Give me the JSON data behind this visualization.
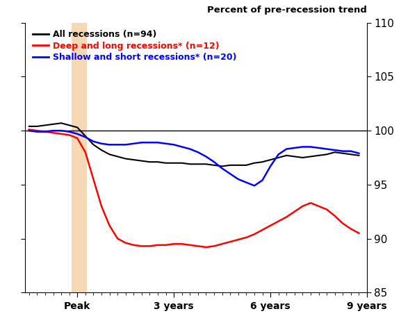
{
  "title": "Percent of pre-recession trend",
  "ylabel_ticks": [
    85,
    90,
    95,
    100,
    105,
    110
  ],
  "ylim": [
    85,
    110
  ],
  "peak_shade_color": "#f5d9b5",
  "hline_y": 100,
  "legend": [
    {
      "label": "All recessions (n=94)",
      "color": "black"
    },
    {
      "label": "Deep and long recessions* (n=12)",
      "color": "red"
    },
    {
      "label": "Shallow and short recessions* (n=20)",
      "color": "blue"
    }
  ],
  "all_recessions": [
    100.4,
    100.4,
    100.5,
    100.6,
    100.7,
    100.5,
    100.3,
    99.5,
    98.7,
    98.2,
    97.8,
    97.6,
    97.4,
    97.3,
    97.2,
    97.1,
    97.1,
    97.0,
    97.0,
    97.0,
    96.9,
    96.9,
    96.9,
    96.8,
    96.7,
    96.8,
    96.8,
    96.8,
    97.0,
    97.1,
    97.3,
    97.5,
    97.7,
    97.6,
    97.5,
    97.6,
    97.7,
    97.8,
    98.0,
    97.9,
    97.8,
    97.7
  ],
  "deep_long": [
    100.1,
    100.0,
    99.9,
    99.8,
    99.7,
    99.6,
    99.3,
    98.0,
    95.5,
    93.0,
    91.2,
    90.0,
    89.6,
    89.4,
    89.3,
    89.3,
    89.4,
    89.4,
    89.5,
    89.5,
    89.4,
    89.3,
    89.2,
    89.3,
    89.5,
    89.7,
    89.9,
    90.1,
    90.4,
    90.8,
    91.2,
    91.6,
    92.0,
    92.5,
    93.0,
    93.3,
    93.0,
    92.7,
    92.1,
    91.4,
    90.9,
    90.5
  ],
  "shallow_short": [
    100.0,
    99.9,
    99.9,
    100.0,
    100.0,
    99.9,
    99.7,
    99.4,
    99.0,
    98.8,
    98.7,
    98.7,
    98.7,
    98.8,
    98.9,
    98.9,
    98.9,
    98.8,
    98.7,
    98.5,
    98.3,
    98.0,
    97.6,
    97.1,
    96.5,
    96.0,
    95.5,
    95.2,
    94.9,
    95.4,
    96.7,
    97.8,
    98.3,
    98.4,
    98.5,
    98.5,
    98.4,
    98.3,
    98.2,
    98.1,
    98.1,
    97.9
  ],
  "n_pre_peak": 6,
  "peak_idx": 6,
  "xtick_labels": [
    "Peak",
    "3 years",
    "6 years",
    "9 years"
  ],
  "xtick_quarter_offsets": [
    0,
    12,
    24,
    36
  ]
}
